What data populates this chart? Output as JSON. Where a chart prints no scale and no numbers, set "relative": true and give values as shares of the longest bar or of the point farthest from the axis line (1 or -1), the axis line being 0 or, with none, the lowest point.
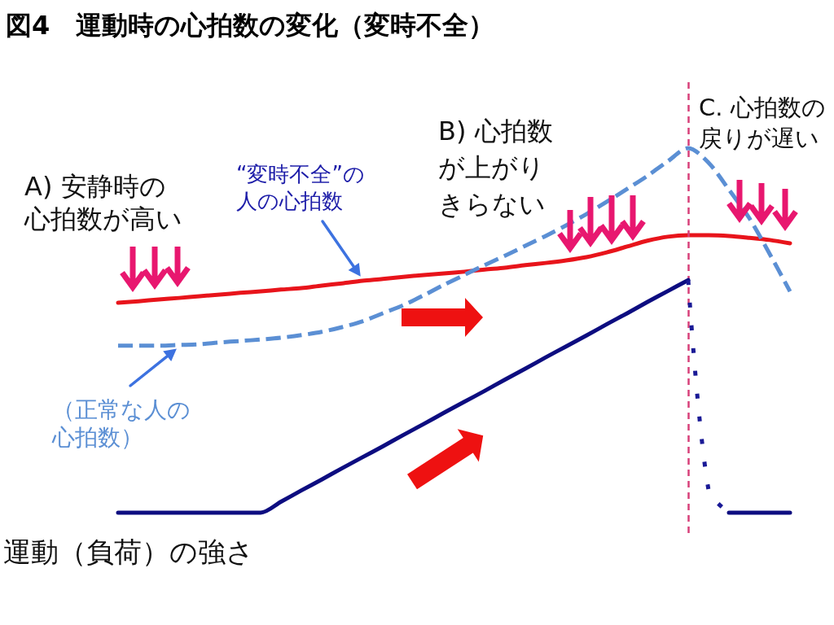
{
  "chart_data": {
    "type": "line",
    "title": "図4　運動時の心拍数の変化（変時不全）",
    "categories": [
      null,
      null,
      null,
      null,
      null,
      null,
      null,
      null,
      null,
      null,
      null,
      null,
      null,
      null,
      null,
      null,
      null,
      null,
      null,
      null,
      null,
      null,
      null,
      null,
      null,
      null,
      null,
      null,
      null,
      null,
      null,
      null,
      null,
      null
    ],
    "relative": true,
    "series": [
      {
        "name": "“変時不全”の人の心拍数",
        "color": "#e8141b",
        "values": [
          0.576,
          0.58,
          0.585,
          0.589,
          0.594,
          0.598,
          0.603,
          0.607,
          0.612,
          0.616,
          0.623,
          0.629,
          0.636,
          0.641,
          0.647,
          0.652,
          0.656,
          0.661,
          0.667,
          0.672,
          0.679,
          0.685,
          0.692,
          0.701,
          0.714,
          0.73,
          0.746,
          0.757,
          0.761,
          0.761,
          0.759,
          0.754,
          0.748,
          0.739
        ]
      },
      {
        "name": "（正常な人の心拍数）",
        "color": "#5b8fd4",
        "line_style": "dashed",
        "values": [
          0.458,
          0.458,
          0.458,
          0.46,
          0.462,
          0.467,
          0.471,
          0.475,
          0.48,
          0.487,
          0.496,
          0.509,
          0.525,
          0.547,
          0.569,
          0.596,
          0.625,
          0.652,
          0.679,
          0.705,
          0.732,
          0.759,
          0.788,
          0.819,
          0.853,
          0.888,
          0.924,
          0.964,
          1.0,
          0.96,
          0.886,
          0.808,
          0.71,
          0.607
        ]
      },
      {
        "name": "運動（負荷）の強さ",
        "color": "#0d0d80",
        "values": [
          0,
          0,
          0,
          0,
          0,
          0,
          0,
          0,
          0.03,
          0.061,
          0.091,
          0.122,
          0.152,
          0.182,
          0.213,
          0.243,
          0.274,
          0.304,
          0.334,
          0.365,
          0.395,
          0.426,
          0.456,
          0.486,
          0.517,
          0.547,
          0.578,
          0.608,
          0.638,
          null,
          0,
          0,
          0,
          0
        ]
      },
      {
        "color": "#1a1a96",
        "line_style": "dotted",
        "values": [
          null,
          null,
          null,
          null,
          null,
          null,
          null,
          null,
          null,
          null,
          null,
          null,
          null,
          null,
          null,
          null,
          null,
          null,
          null,
          null,
          null,
          null,
          null,
          null,
          null,
          null,
          null,
          null,
          0.638,
          0.062,
          0,
          null,
          null,
          null
        ]
      }
    ],
    "annotations": [
      "A) 安静時の心拍数が高い",
      "B) 心拍数が上がりきらない",
      "C. 心拍数の戻りが遅い"
    ]
  }
}
